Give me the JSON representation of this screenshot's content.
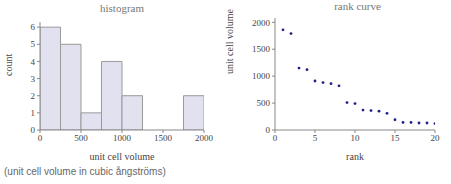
{
  "chart_data": [
    {
      "type": "histogram",
      "title": "histogram",
      "x_label": "unit cell volume",
      "y_label": "count",
      "bins": [
        0,
        250,
        500,
        750,
        1000,
        1250,
        1500,
        1750,
        2000
      ],
      "values": [
        6,
        5,
        1,
        4,
        2,
        0,
        0,
        2
      ],
      "color": "#e1e1f0",
      "xlim": [
        0,
        2000
      ],
      "xticks": [
        0,
        500,
        1000,
        1500,
        2000
      ],
      "ylim": [
        0,
        6.3
      ],
      "yticks": [
        0,
        1,
        2,
        3,
        4,
        5,
        6
      ],
      "grid": false
    },
    {
      "type": "scatter",
      "title": "rank curve",
      "x_label": "rank",
      "y_label": "unit cell volume",
      "x": [
        1,
        2,
        3,
        4,
        5,
        6,
        7,
        8,
        9,
        10,
        11,
        12,
        13,
        14,
        15,
        16,
        17,
        18,
        19,
        20
      ],
      "values": [
        1860,
        1790,
        1150,
        1120,
        910,
        880,
        860,
        820,
        510,
        490,
        370,
        360,
        350,
        310,
        190,
        140,
        140,
        130,
        130,
        120
      ],
      "color": "#20208a",
      "xlim": [
        0,
        20
      ],
      "xticks": [
        0,
        5,
        10,
        15,
        20
      ],
      "ylim": [
        0,
        2080
      ],
      "yticks": [
        0,
        500,
        1000,
        1500,
        2000
      ],
      "grid": false
    }
  ],
  "footnote": "(unit cell volume in cubic ångströms)"
}
